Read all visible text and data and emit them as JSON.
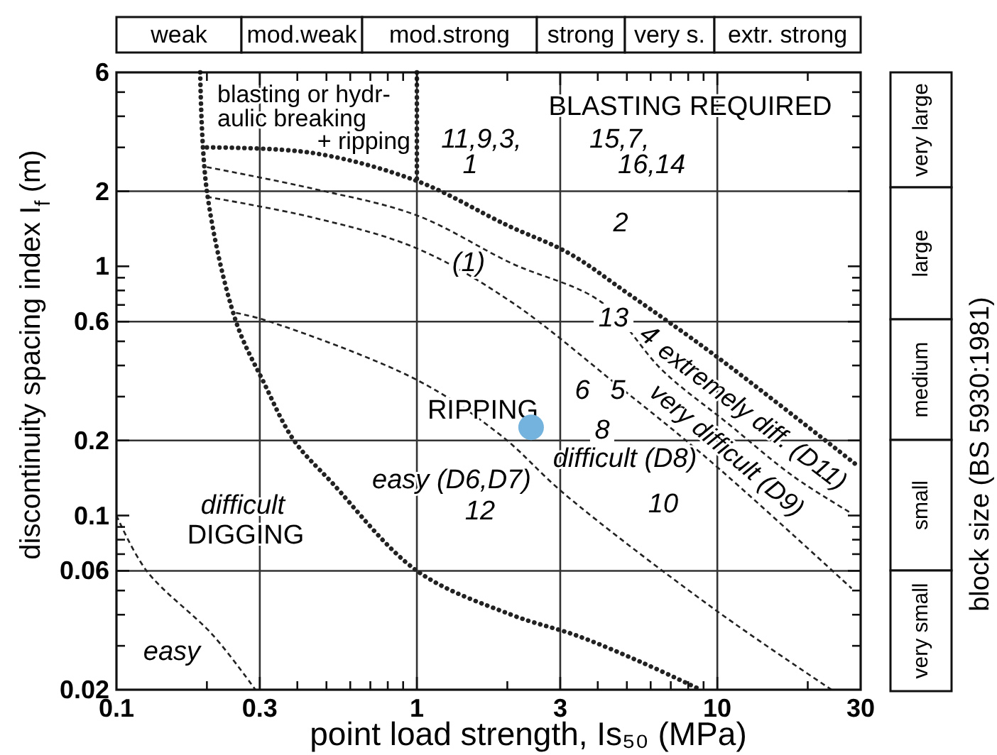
{
  "chart_data": [
    {
      "type": "line",
      "xlabel": "point load strength, Is₅₀ (MPa)",
      "ylabel": "discontinuity spacing index I$_{f}$ (m)",
      "y2label": "block size (BS 5930:1981)",
      "log": "xy",
      "xlim": [
        0.1,
        30
      ],
      "ylim": [
        0.02,
        6
      ],
      "xticks": [
        0.1,
        {
          "value": 0.2,
          "label": null
        },
        0.3,
        {
          "value": 0.4,
          "label": null
        },
        {
          "value": 0.5,
          "label": null
        },
        {
          "value": 0.6,
          "label": null
        },
        {
          "value": 0.7,
          "label": null
        },
        {
          "value": 0.8,
          "label": null
        },
        {
          "value": 0.9,
          "label": null
        },
        1,
        {
          "value": 2,
          "label": null
        },
        3,
        {
          "value": 4,
          "label": null
        },
        {
          "value": 5,
          "label": null
        },
        {
          "value": 6,
          "label": null
        },
        {
          "value": 7,
          "label": null
        },
        {
          "value": 8,
          "label": null
        },
        {
          "value": 9,
          "label": null
        },
        10,
        {
          "value": 20,
          "label": null
        },
        30
      ],
      "yticks": [
        0.02,
        {
          "value": 0.03,
          "label": null
        },
        {
          "value": 0.04,
          "label": null
        },
        {
          "value": 0.05,
          "label": null
        },
        0.06,
        {
          "value": 0.07,
          "label": null
        },
        {
          "value": 0.08,
          "label": null
        },
        {
          "value": 0.09,
          "label": null
        },
        0.1,
        0.2,
        {
          "value": 0.3,
          "label": null
        },
        {
          "value": 0.4,
          "label": null
        },
        {
          "value": 0.5,
          "label": null
        },
        0.6,
        {
          "value": 0.7,
          "label": null
        },
        {
          "value": 0.8,
          "label": null
        },
        {
          "value": 0.9,
          "label": null
        },
        1,
        2,
        {
          "value": 3,
          "label": null
        },
        {
          "value": 4,
          "label": null
        },
        {
          "value": 5,
          "label": null
        },
        6
      ],
      "ref_lines": [
        {
          "axis": "x",
          "value": 0.3
        },
        {
          "axis": "x",
          "value": 1
        },
        {
          "axis": "x",
          "value": 3
        },
        {
          "axis": "x",
          "value": 10
        },
        {
          "axis": "y",
          "value": 2
        },
        {
          "axis": "y",
          "value": 0.6
        },
        {
          "axis": "y",
          "value": 0.2
        },
        {
          "axis": "y",
          "value": 0.06
        }
      ],
      "series": [
        {
          "type": "line",
          "color": "#222222",
          "line_style": "dotted",
          "x": [
            0.2,
            0.45,
            1,
            2,
            3.2,
            5.1,
            9.8,
            29
          ],
          "values": [
            3,
            2.85,
            2.2,
            1.46,
            1.13,
            0.77,
            0.44,
            0.16
          ]
        },
        {
          "type": "line",
          "color": "#222222",
          "line_style": "dotted",
          "x": [
            1,
            1
          ],
          "values": [
            6,
            2.2
          ]
        },
        {
          "type": "line",
          "color": "#222222",
          "line_style": "dashed",
          "x": [
            0.2,
            0.45,
            1,
            2.06,
            4.1,
            6.6,
            10.8,
            18,
            28
          ],
          "values": [
            2.5,
            2.05,
            1.6,
            1.03,
            0.72,
            0.38,
            0.235,
            0.143,
            0.102
          ]
        },
        {
          "type": "line",
          "color": "#222222",
          "line_style": "dashed",
          "x": [
            0.2,
            0.45,
            1,
            2.06,
            4.7,
            9.5,
            28
          ],
          "values": [
            1.9,
            1.57,
            1.18,
            0.72,
            0.33,
            0.165,
            0.051
          ]
        },
        {
          "type": "line",
          "color": "#222222",
          "line_style": "dashed",
          "x": [
            0.25,
            0.31,
            1,
            1.9,
            3.1,
            9.8,
            24
          ],
          "values": [
            0.65,
            0.61,
            0.35,
            0.21,
            0.122,
            0.042,
            0.02
          ]
        },
        {
          "type": "line",
          "color": "#222222",
          "line_style": "dotted",
          "x": [
            0.19,
            0.2,
            0.25,
            0.31,
            0.39,
            0.52,
            1,
            2.06,
            3.4,
            5.5,
            8.8
          ],
          "values": [
            6,
            2,
            0.6,
            0.34,
            0.2,
            0.136,
            0.06,
            0.04,
            0.033,
            0.026,
            0.02
          ]
        },
        {
          "type": "line",
          "color": "#222222",
          "line_style": "dashed",
          "x": [
            0.1,
            0.126,
            0.21,
            0.29
          ],
          "values": [
            0.1,
            0.06,
            0.033,
            0.02
          ]
        },
        {
          "type": "scatter",
          "color": "#74b3dd",
          "marker": "circle",
          "x": [
            2.4
          ],
          "values": [
            0.226
          ]
        }
      ],
      "annotations": [
        "blasting or hydr-\naulic breaking\n+ ripping",
        "11,9,3,\n1",
        "BLASTING REQUIRED",
        "15,7,\n16,14",
        "2",
        "(1)",
        "13",
        "4",
        "extremely diff. (D11)",
        "6",
        "5",
        "very difficult (D9)",
        "RIPPING",
        "8",
        "difficult (D8)",
        "easy (D6,D7)",
        "12",
        "10",
        "difficult",
        "DIGGING",
        "easy"
      ]
    },
    {
      "type": "other",
      "categories": [
        "weak",
        "mod.weak",
        "mod.strong",
        "strong",
        "very s.",
        "extr. strong"
      ]
    },
    {
      "type": "other",
      "categories": [
        "very large",
        "large",
        "medium",
        "small",
        "very small"
      ]
    }
  ]
}
